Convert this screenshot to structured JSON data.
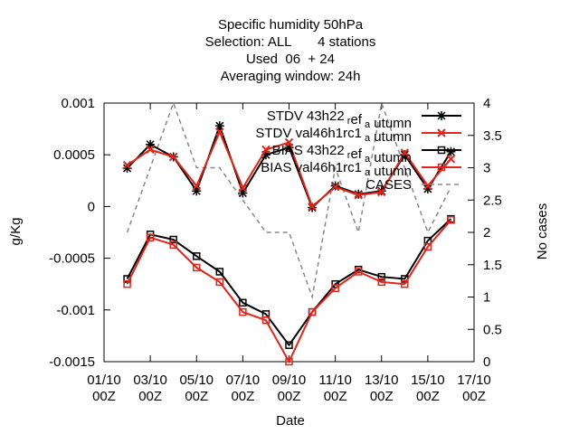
{
  "chart_data": {
    "type": "line",
    "title_lines": [
      "Specific humidity 50hPa",
      "Selection: ALL       4 stations",
      "Used  06  + 24",
      "Averaging window: 24h"
    ],
    "xlabel": "Date",
    "ylabel": "g/Kg",
    "y2label": "No cases",
    "x_ticks": [
      {
        "x": 1,
        "line1": "01/10",
        "line2": "00Z"
      },
      {
        "x": 3,
        "line1": "03/10",
        "line2": "00Z"
      },
      {
        "x": 5,
        "line1": "05/10",
        "line2": "00Z"
      },
      {
        "x": 7,
        "line1": "07/10",
        "line2": "00Z"
      },
      {
        "x": 9,
        "line1": "09/10",
        "line2": "00Z"
      },
      {
        "x": 11,
        "line1": "11/10",
        "line2": "00Z"
      },
      {
        "x": 13,
        "line1": "13/10",
        "line2": "00Z"
      },
      {
        "x": 15,
        "line1": "15/10",
        "line2": "00Z"
      },
      {
        "x": 17,
        "line1": "17/10",
        "line2": "00Z"
      }
    ],
    "y_ticks": [
      {
        "v": 0.001,
        "label": "0.001"
      },
      {
        "v": 0.0005,
        "label": "0.0005"
      },
      {
        "v": 0,
        "label": "0"
      },
      {
        "v": -0.0005,
        "label": "-0.0005"
      },
      {
        "v": -0.001,
        "label": "-0.001"
      },
      {
        "v": -0.0015,
        "label": "-0.0015"
      }
    ],
    "y2_ticks": [
      {
        "v": 4,
        "label": "4"
      },
      {
        "v": 3.5,
        "label": "3.5"
      },
      {
        "v": 3,
        "label": "3"
      },
      {
        "v": 2.5,
        "label": "2.5"
      },
      {
        "v": 2,
        "label": "2"
      },
      {
        "v": 1.5,
        "label": "1.5"
      },
      {
        "v": 1,
        "label": "1"
      },
      {
        "v": 0.5,
        "label": "0.5"
      },
      {
        "v": 0,
        "label": "0"
      }
    ],
    "xlim": [
      1,
      17
    ],
    "ylim": [
      -0.0015,
      0.001
    ],
    "y2lim": [
      0,
      4
    ],
    "grid": false,
    "legend_position": "top-right",
    "x": [
      2,
      3,
      4,
      5,
      6,
      7,
      8,
      9,
      10,
      11,
      12,
      13,
      14,
      15,
      16
    ],
    "series": [
      {
        "name": "STDV 43h22_ref_autumn",
        "color": "#000000",
        "marker": "star",
        "axis": "y1",
        "values": [
          0.00037,
          0.0006,
          0.00048,
          0.00015,
          0.00078,
          0.00013,
          0.0005,
          0.00057,
          -1e-05,
          0.0002,
          0.00012,
          0.00015,
          0.0005,
          0.00017,
          0.00053
        ]
      },
      {
        "name": "STDV val46h1rc1_autumn",
        "color": "#e0251b",
        "marker": "cross",
        "axis": "y1",
        "values": [
          0.0004,
          0.00055,
          0.00048,
          0.0002,
          0.00072,
          0.00018,
          0.00055,
          0.00062,
          0.0,
          0.00019,
          0.00011,
          0.00014,
          0.00052,
          0.0002,
          0.00046
        ]
      },
      {
        "name": "BIAS 43h22_ref_autumn",
        "color": "#000000",
        "marker": "square",
        "axis": "y1",
        "values": [
          -0.0007,
          -0.00027,
          -0.00032,
          -0.00048,
          -0.00063,
          -0.00093,
          -0.00104,
          -0.00134,
          -0.00102,
          -0.00075,
          -0.00061,
          -0.00068,
          -0.0007,
          -0.00033,
          -0.00012
        ]
      },
      {
        "name": "BIAS val46h1rc1_autumn",
        "color": "#e0251b",
        "marker": "square",
        "axis": "y1",
        "values": [
          -0.00075,
          -0.0003,
          -0.00037,
          -0.00059,
          -0.00073,
          -0.00102,
          -0.0011,
          -0.0015,
          -0.00102,
          -0.00079,
          -0.00063,
          -0.00073,
          -0.00075,
          -0.00039,
          -0.00013
        ]
      },
      {
        "name": "CASES",
        "color": "#888888",
        "marker": "none",
        "dashed": true,
        "axis": "y2",
        "values": [
          2,
          3,
          4,
          3,
          3,
          2.5,
          2,
          2,
          1,
          3,
          2,
          4,
          3,
          2,
          2.7
        ]
      }
    ],
    "legend_labels": [
      "STDV 43h22_ref_autumn",
      "STDV val46h1rc1_autumn",
      "BIAS 43h22_ref_autumn",
      "BIAS val46h1rc1_autumn",
      "CASES"
    ],
    "legend_label_fragments": [
      {
        "main": "STDV 43h22",
        "s1": "r",
        "mid": "ef",
        "s2": "a",
        "end": "utumn"
      },
      {
        "main": "STDV val46h1rc1",
        "s1": "",
        "mid": "",
        "s2": "a",
        "end": "utumn"
      },
      {
        "main": "BIAS 43h22",
        "s1": "r",
        "mid": "ef",
        "s2": "a",
        "end": "utumn"
      },
      {
        "main": "BIAS val46h1rc1",
        "s1": "",
        "mid": "",
        "s2": "a",
        "end": "utumn"
      },
      {
        "main": "CASES",
        "s1": "",
        "mid": "",
        "s2": "",
        "end": ""
      }
    ]
  }
}
